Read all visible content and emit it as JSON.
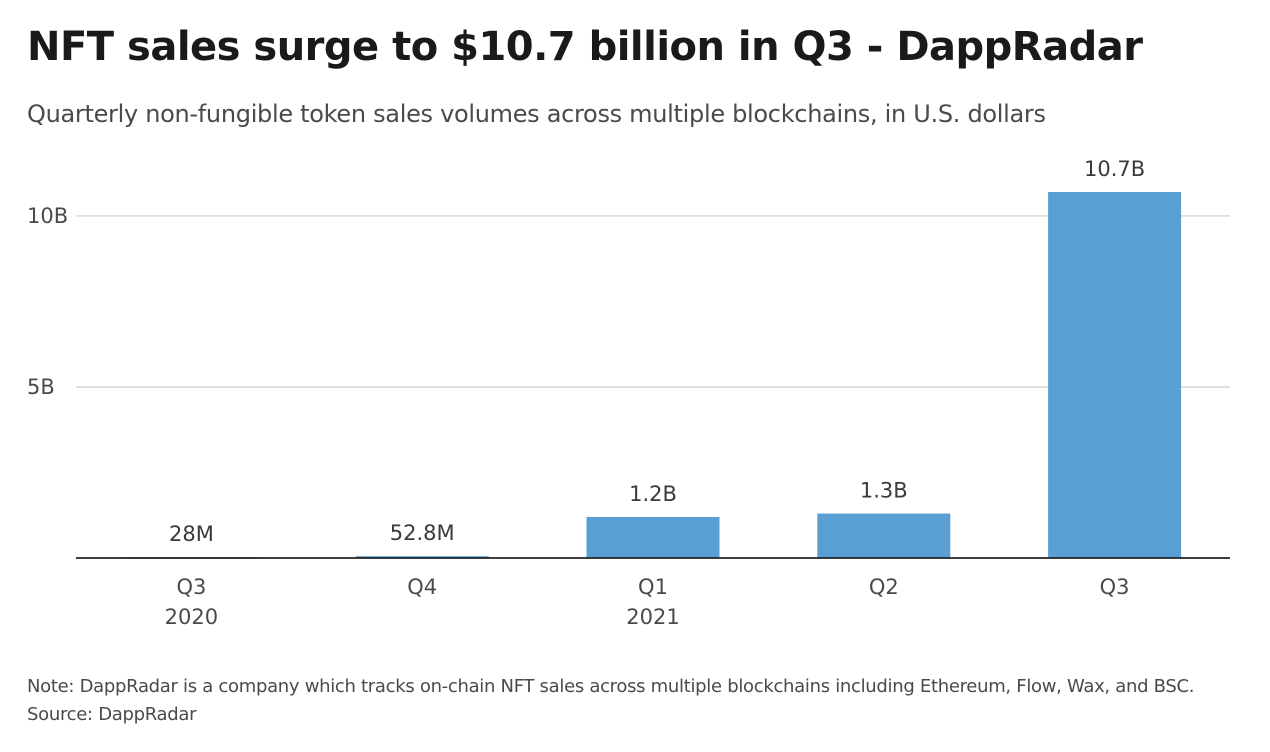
{
  "header": {
    "title": "NFT sales surge to $10.7 billion in Q3 - DappRadar",
    "subtitle": "Quarterly non-fungible token sales volumes across multiple blockchains, in U.S. dollars"
  },
  "footer": {
    "note": "Note: DappRadar is a company which tracks on-chain NFT sales across multiple blockchains including Ethereum, Flow, Wax, and BSC.",
    "source": "Source: DappRadar"
  },
  "chart_data": {
    "type": "bar",
    "categories": [
      "Q3",
      "Q4",
      "Q1",
      "Q2",
      "Q3"
    ],
    "category_years": [
      "2020",
      "",
      "2021",
      "",
      ""
    ],
    "values": [
      0.028,
      0.0528,
      1.2,
      1.3,
      10.7
    ],
    "value_labels": [
      "28M",
      "52.8M",
      "1.2B",
      "1.3B",
      "10.7B"
    ],
    "unit": "billion U.S. dollars",
    "yticks": [
      5,
      10
    ],
    "ytick_labels": [
      "5B",
      "10B"
    ],
    "ylim": [
      0,
      10.7
    ],
    "grid": true,
    "bar_color": "#5a9fd4",
    "grid_color": "#cccccc",
    "axis_color": "#222222"
  }
}
